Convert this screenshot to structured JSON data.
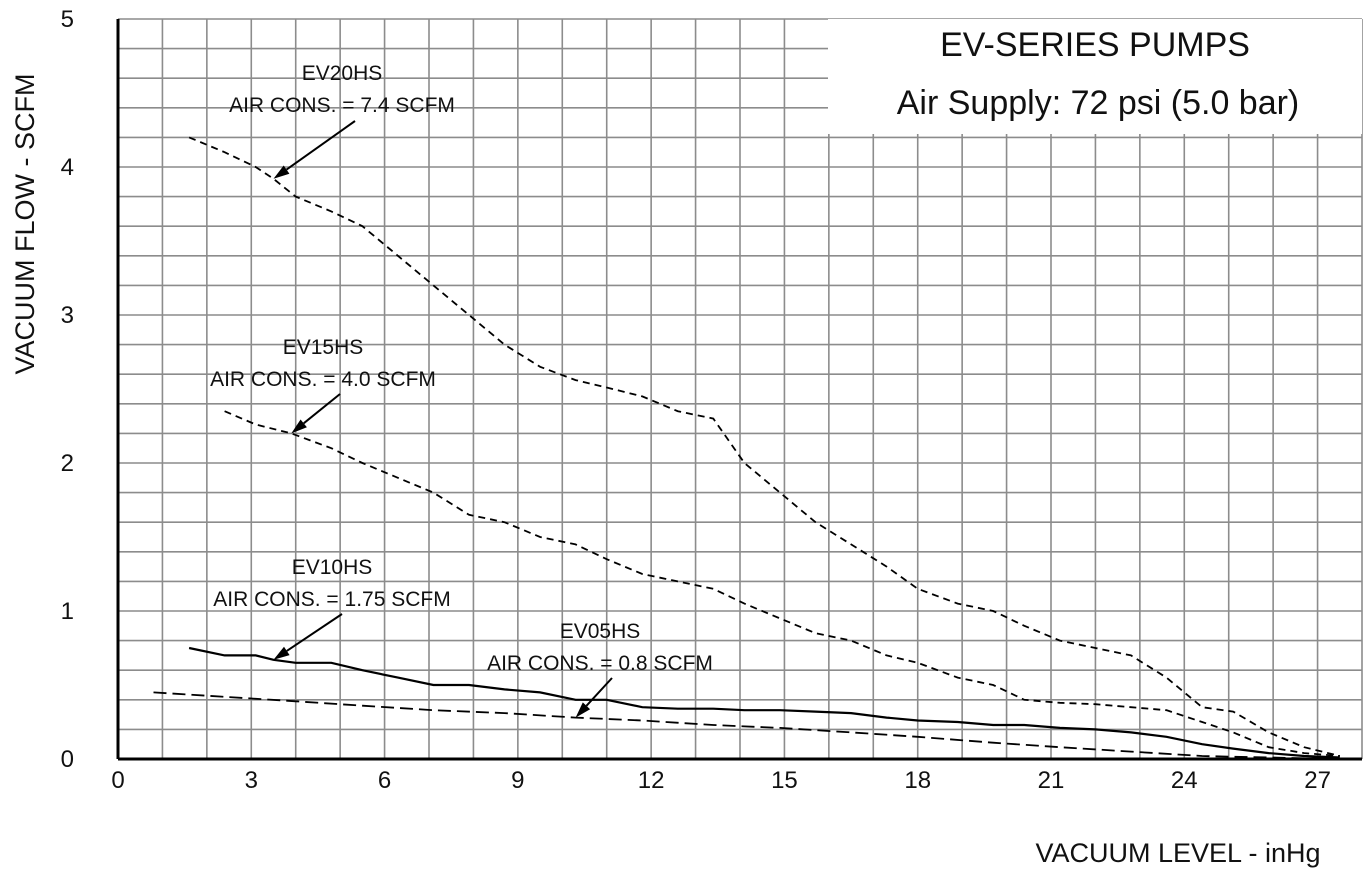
{
  "chart_data": {
    "type": "line",
    "title": "EV-SERIES PUMPS",
    "subtitle": "Air Supply: 72 psi (5.0 bar)",
    "xlabel": "VACUUM LEVEL - inHg",
    "ylabel": "VACUUM FLOW  -  SCFM",
    "xlim": [
      0,
      28
    ],
    "ylim": [
      0,
      5
    ],
    "x_ticks": [
      "0",
      "3",
      "6",
      "9",
      "12",
      "15",
      "18",
      "21",
      "24",
      "27"
    ],
    "y_ticks": [
      "0",
      "1",
      "2",
      "3",
      "4",
      "5"
    ],
    "grid": true,
    "series": [
      {
        "name": "EV20HS",
        "annotation": "AIR CONS. = 7.4 SCFM",
        "style": "dashed",
        "x": [
          1.6,
          2.4,
          3.1,
          3.5,
          4.0,
          4.8,
          5.5,
          6.3,
          7.1,
          7.9,
          8.7,
          9.5,
          10.3,
          11.0,
          11.8,
          12.6,
          13.4,
          14.1,
          14.9,
          15.7,
          16.5,
          17.3,
          18.0,
          18.9,
          19.7,
          20.4,
          21.2,
          22.0,
          22.8,
          23.6,
          24.4,
          25.1,
          25.9,
          26.7,
          27.5
        ],
        "y": [
          4.2,
          4.1,
          4.0,
          3.92,
          3.8,
          3.7,
          3.6,
          3.4,
          3.2,
          3.0,
          2.8,
          2.65,
          2.56,
          2.51,
          2.45,
          2.35,
          2.3,
          2.0,
          1.8,
          1.6,
          1.45,
          1.3,
          1.15,
          1.05,
          1.0,
          0.9,
          0.8,
          0.75,
          0.7,
          0.55,
          0.35,
          0.32,
          0.18,
          0.08,
          0.02
        ]
      },
      {
        "name": "EV15HS",
        "annotation": "AIR CONS. = 4.0 SCFM",
        "style": "dashed",
        "x": [
          2.4,
          3.1,
          3.9,
          4.8,
          5.5,
          6.3,
          7.1,
          7.9,
          8.7,
          9.5,
          10.3,
          11.0,
          11.8,
          12.6,
          13.4,
          14.1,
          14.9,
          15.7,
          16.5,
          17.3,
          18.0,
          18.9,
          19.7,
          20.4,
          21.2,
          22.0,
          22.8,
          23.6,
          24.4,
          25.1,
          25.9,
          26.7,
          27.5
        ],
        "y": [
          2.35,
          2.26,
          2.2,
          2.1,
          2.0,
          1.9,
          1.8,
          1.65,
          1.6,
          1.5,
          1.45,
          1.35,
          1.25,
          1.2,
          1.15,
          1.05,
          0.95,
          0.85,
          0.8,
          0.7,
          0.65,
          0.55,
          0.5,
          0.4,
          0.38,
          0.37,
          0.35,
          0.33,
          0.25,
          0.18,
          0.08,
          0.04,
          0.02
        ]
      },
      {
        "name": "EV10HS",
        "annotation": "AIR CONS. = 1.75 SCFM",
        "style": "solid",
        "x": [
          1.6,
          2.4,
          3.1,
          3.5,
          4.0,
          4.8,
          5.5,
          6.3,
          7.1,
          7.9,
          8.7,
          9.5,
          10.3,
          11.0,
          11.8,
          12.6,
          13.4,
          14.1,
          14.9,
          15.7,
          16.5,
          17.3,
          18.0,
          18.9,
          19.7,
          20.4,
          21.2,
          22.0,
          22.8,
          23.6,
          24.4,
          25.1,
          25.9,
          26.7,
          27.5
        ],
        "y": [
          0.75,
          0.7,
          0.7,
          0.67,
          0.65,
          0.65,
          0.6,
          0.55,
          0.5,
          0.5,
          0.47,
          0.45,
          0.4,
          0.4,
          0.35,
          0.34,
          0.34,
          0.33,
          0.33,
          0.32,
          0.31,
          0.28,
          0.26,
          0.25,
          0.23,
          0.23,
          0.21,
          0.2,
          0.18,
          0.15,
          0.1,
          0.07,
          0.04,
          0.02,
          0.01
        ]
      },
      {
        "name": "EV05HS",
        "annotation": "AIR CONS. = 0.8 SCFM",
        "style": "longdash",
        "x": [
          0.8,
          2.4,
          4.0,
          5.5,
          7.1,
          8.7,
          10.3,
          11.8,
          13.4,
          14.9,
          16.5,
          18.0,
          19.7,
          21.2,
          22.8,
          24.4,
          25.9,
          27.5
        ],
        "y": [
          0.45,
          0.42,
          0.39,
          0.36,
          0.33,
          0.31,
          0.28,
          0.26,
          0.23,
          0.21,
          0.18,
          0.15,
          0.11,
          0.08,
          0.05,
          0.02,
          0.01,
          0.0
        ]
      }
    ]
  }
}
